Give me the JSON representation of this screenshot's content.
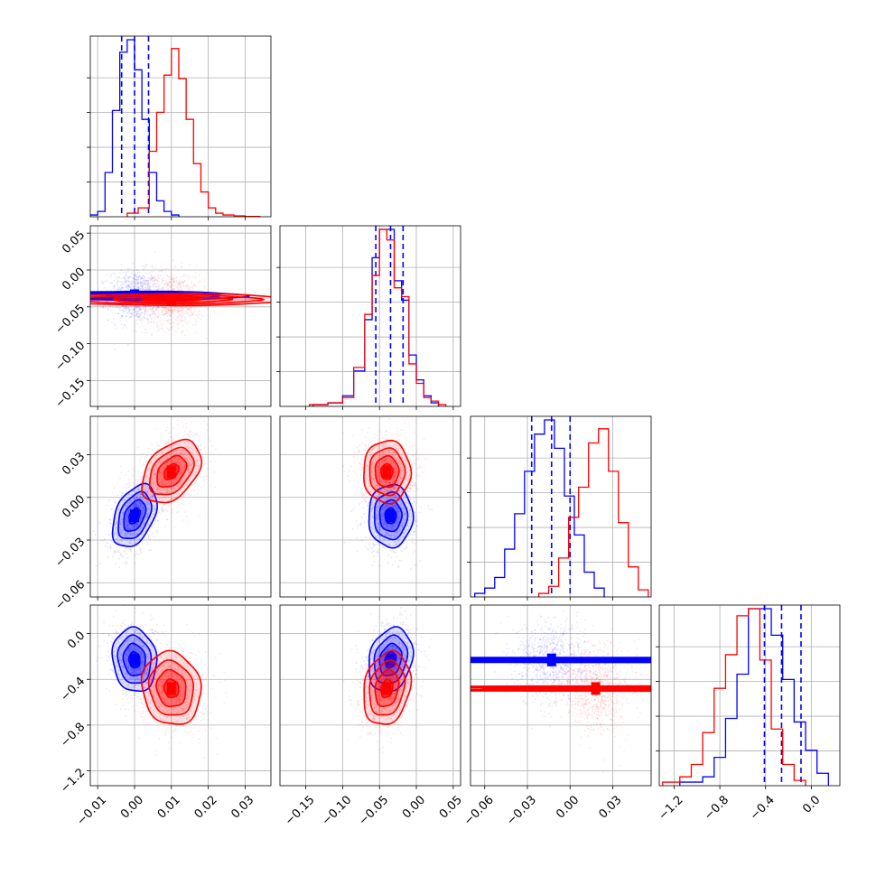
{
  "chart_data": {
    "type": "corner",
    "parameters": [
      {
        "range": [
          -0.012,
          0.037
        ],
        "ticks": [
          -0.01,
          0.0,
          0.01,
          0.02,
          0.03
        ],
        "tick_labels": [
          "−0.01",
          "0.00",
          "0.01",
          "0.02",
          "0.03"
        ],
        "y_ticks": []
      },
      {
        "range": [
          -0.185,
          0.06
        ],
        "ticks": [
          -0.15,
          -0.1,
          -0.05,
          0.0,
          0.05
        ],
        "tick_labels": [
          "−0.15",
          "−0.10",
          "−0.05",
          "0.00",
          "0.05"
        ],
        "y_ticks": [
          0.05,
          0.0,
          -0.05,
          -0.1,
          -0.15
        ],
        "y_tick_labels": [
          "0.05",
          "0.00",
          "−0.05",
          "−0.10",
          "−0.15"
        ]
      },
      {
        "range": [
          -0.07,
          0.057
        ],
        "ticks": [
          -0.06,
          -0.03,
          0.0,
          0.03
        ],
        "tick_labels": [
          "−0.06",
          "−0.03",
          "0.00",
          "0.03"
        ],
        "y_ticks": [
          0.03,
          0.0,
          -0.03,
          -0.06
        ],
        "y_tick_labels": [
          "0.03",
          "0.00",
          "−0.03",
          "−0.06"
        ]
      },
      {
        "range": [
          -1.33,
          0.25
        ],
        "ticks": [
          -1.2,
          -0.8,
          -0.4,
          0.0
        ],
        "tick_labels": [
          "−1.2",
          "−0.8",
          "−0.4",
          "0.0"
        ],
        "y_ticks": [
          0.0,
          -0.4,
          -0.8,
          -1.2
        ],
        "y_tick_labels": [
          "0.0",
          "−0.4",
          "−0.8",
          "−1.2"
        ]
      }
    ],
    "series": [
      {
        "color": "#0000ff",
        "means": [
          0.0,
          -0.035,
          -0.013,
          -0.23
        ],
        "stds": [
          0.003,
          0.015,
          0.011,
          0.14
        ],
        "quantile_lines": [
          [
            -0.0035,
            0.0,
            0.0038
          ],
          [
            -0.055,
            -0.035,
            -0.018
          ],
          [
            -0.027,
            -0.013,
            0.0
          ],
          [
            -0.41,
            -0.26,
            -0.09
          ]
        ],
        "hist": [
          {
            "edges": [
              -0.012,
              -0.01,
              -0.008,
              -0.006,
              -0.004,
              -0.002,
              0.0,
              0.002,
              0.004,
              0.006,
              0.008,
              0.01,
              0.012
            ],
            "values": [
              0.01,
              0.03,
              0.25,
              0.6,
              0.93,
              1.0,
              0.83,
              0.55,
              0.25,
              0.09,
              0.03,
              0.01
            ]
          },
          {
            "edges": [
              -0.14,
              -0.12,
              -0.1,
              -0.085,
              -0.07,
              -0.06,
              -0.05,
              -0.04,
              -0.03,
              -0.02,
              -0.01,
              0.0,
              0.01,
              0.02,
              0.03
            ],
            "values": [
              0.01,
              0.02,
              0.06,
              0.2,
              0.49,
              0.84,
              1.0,
              1.0,
              0.71,
              0.6,
              0.29,
              0.15,
              0.06,
              0.02
            ]
          },
          {
            "edges": [
              -0.067,
              -0.06,
              -0.053,
              -0.046,
              -0.039,
              -0.032,
              -0.025,
              -0.018,
              -0.011,
              -0.004,
              0.003,
              0.01,
              0.017,
              0.024
            ],
            "values": [
              0.02,
              0.05,
              0.11,
              0.27,
              0.47,
              0.71,
              0.92,
              1.0,
              0.84,
              0.57,
              0.35,
              0.14,
              0.05
            ]
          },
          {
            "edges": [
              -1.15,
              -0.95,
              -0.85,
              -0.75,
              -0.65,
              -0.55,
              -0.45,
              -0.35,
              -0.25,
              -0.15,
              -0.05,
              0.05,
              0.15
            ],
            "values": [
              0.02,
              0.05,
              0.16,
              0.38,
              0.63,
              1.0,
              1.0,
              0.85,
              0.6,
              0.36,
              0.2,
              0.07
            ]
          }
        ]
      },
      {
        "color": "#ff0000",
        "means": [
          0.01,
          -0.04,
          0.018,
          -0.48
        ],
        "stds": [
          0.004,
          0.016,
          0.011,
          0.16
        ],
        "quantile_lines": [],
        "hist": [
          {
            "edges": [
              -0.002,
              0.001,
              0.004,
              0.006,
              0.008,
              0.01,
              0.012,
              0.014,
              0.016,
              0.018,
              0.02,
              0.022,
              0.024,
              0.027,
              0.03,
              0.034
            ],
            "values": [
              0.02,
              0.05,
              0.37,
              0.59,
              0.8,
              0.95,
              0.78,
              0.55,
              0.3,
              0.14,
              0.05,
              0.02,
              0.01,
              0.005,
              0.002
            ]
          },
          {
            "edges": [
              -0.145,
              -0.12,
              -0.1,
              -0.085,
              -0.07,
              -0.06,
              -0.05,
              -0.04,
              -0.03,
              -0.02,
              -0.01,
              0.0,
              0.01,
              0.02,
              0.03,
              0.04
            ],
            "values": [
              0.01,
              0.02,
              0.05,
              0.22,
              0.52,
              0.74,
              1.0,
              0.94,
              0.67,
              0.62,
              0.24,
              0.13,
              0.05,
              0.03,
              0.01
            ]
          },
          {
            "edges": [
              -0.022,
              -0.015,
              -0.008,
              -0.001,
              0.006,
              0.013,
              0.02,
              0.027,
              0.034,
              0.041,
              0.048,
              0.055
            ],
            "values": [
              0.02,
              0.06,
              0.22,
              0.45,
              0.62,
              0.87,
              0.95,
              0.71,
              0.42,
              0.17,
              0.04
            ]
          },
          {
            "edges": [
              -1.3,
              -1.15,
              -1.05,
              -0.95,
              -0.85,
              -0.75,
              -0.65,
              -0.55,
              -0.45,
              -0.35,
              -0.25,
              -0.15,
              -0.05
            ],
            "values": [
              0.02,
              0.05,
              0.12,
              0.3,
              0.55,
              0.74,
              0.96,
              1.0,
              0.71,
              0.32,
              0.12,
              0.03
            ]
          }
        ]
      }
    ],
    "correlations": {
      "0-1": 0.0,
      "0-2": 0.4,
      "1-2": 0.0,
      "0-3": -0.1,
      "1-3": 0.2,
      "2-3": 0.0
    },
    "contour_levels_sigma": [
      0.5,
      1.0,
      1.5,
      2.0
    ],
    "grid": true
  }
}
